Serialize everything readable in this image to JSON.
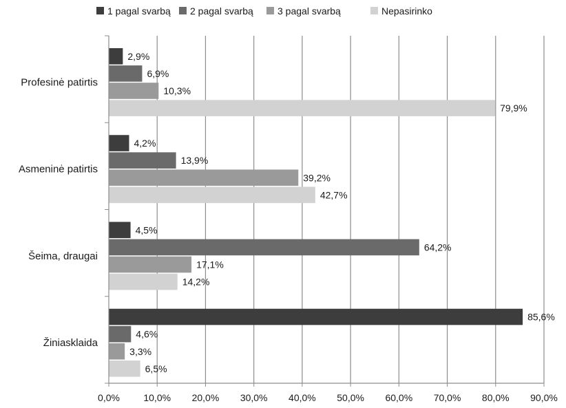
{
  "chart_data": {
    "type": "bar",
    "orientation": "horizontal",
    "categories": [
      "Profesinė patirtis",
      "Asmeninė patirtis",
      "Šeima, draugai",
      "Žiniasklaida"
    ],
    "series": [
      {
        "name": "1 pagal svarbą",
        "color": "#3d3d3d",
        "values": [
          2.9,
          4.2,
          4.5,
          85.6
        ]
      },
      {
        "name": "2 pagal svarbą",
        "color": "#6a6a6a",
        "values": [
          6.9,
          13.9,
          64.2,
          4.6
        ]
      },
      {
        "name": "3 pagal svarbą",
        "color": "#9a9a9a",
        "values": [
          10.3,
          39.2,
          17.1,
          3.3
        ]
      },
      {
        "name": "Nepasirinko",
        "color": "#d2d2d2",
        "values": [
          79.9,
          42.7,
          14.2,
          6.5
        ]
      }
    ],
    "data_labels": [
      [
        "2,9%",
        "6,9%",
        "10,3%",
        "79,9%"
      ],
      [
        "4,2%",
        "13,9%",
        "39,2%",
        "42,7%"
      ],
      [
        "4,5%",
        "64,2%",
        "17,1%",
        "14,2%"
      ],
      [
        "85,6%",
        "4,6%",
        "3,3%",
        "6,5%"
      ]
    ],
    "x_ticks": [
      "0,0%",
      "10,0%",
      "20,0%",
      "30,0%",
      "40,0%",
      "50,0%",
      "60,0%",
      "70,0%",
      "80,0%",
      "90,0%"
    ],
    "xlim": [
      0,
      90
    ],
    "grid": "vertical",
    "legend_position": "top"
  }
}
